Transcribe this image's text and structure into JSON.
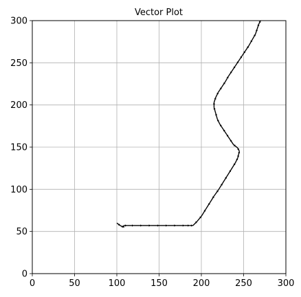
{
  "chart_data": {
    "type": "quiver",
    "title": "Vector Plot",
    "xlabel": "",
    "ylabel": "",
    "xlim": [
      0,
      300
    ],
    "ylim": [
      0,
      300
    ],
    "xticks": [
      0,
      50,
      100,
      150,
      200,
      250,
      300
    ],
    "yticks": [
      0,
      50,
      100,
      150,
      200,
      250,
      300
    ],
    "grid": true,
    "arrow_color": "#000000",
    "path": [
      [
        100,
        60
      ],
      [
        104,
        57
      ],
      [
        108,
        55
      ],
      [
        108,
        57
      ],
      [
        112,
        57
      ],
      [
        120,
        57
      ],
      [
        130,
        57
      ],
      [
        140,
        57
      ],
      [
        150,
        57
      ],
      [
        160,
        57
      ],
      [
        170,
        57
      ],
      [
        180,
        57
      ],
      [
        186,
        57
      ],
      [
        190,
        57
      ],
      [
        195,
        62
      ],
      [
        200,
        68
      ],
      [
        205,
        76
      ],
      [
        210,
        84
      ],
      [
        215,
        92
      ],
      [
        220,
        99
      ],
      [
        225,
        107
      ],
      [
        230,
        115
      ],
      [
        235,
        123
      ],
      [
        240,
        131
      ],
      [
        243,
        137
      ],
      [
        244,
        141
      ],
      [
        245,
        145
      ],
      [
        243,
        149
      ],
      [
        238,
        153
      ],
      [
        234,
        159
      ],
      [
        230,
        165
      ],
      [
        226,
        171
      ],
      [
        222,
        177
      ],
      [
        219,
        183
      ],
      [
        217,
        190
      ],
      [
        215,
        197
      ],
      [
        215,
        203
      ],
      [
        217,
        209
      ],
      [
        220,
        215
      ],
      [
        224,
        221
      ],
      [
        228,
        227
      ],
      [
        232,
        234
      ],
      [
        236,
        240
      ],
      [
        240,
        246
      ],
      [
        244,
        252
      ],
      [
        248,
        258
      ],
      [
        252,
        264
      ],
      [
        256,
        270
      ],
      [
        260,
        277
      ],
      [
        264,
        284
      ],
      [
        266,
        290
      ],
      [
        268,
        296
      ],
      [
        270,
        300
      ]
    ]
  }
}
